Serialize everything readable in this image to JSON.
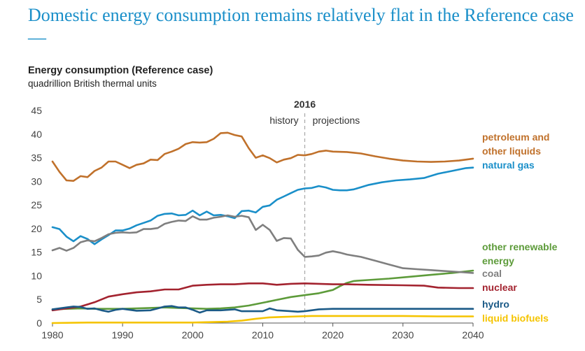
{
  "headline": "Domestic energy consumption remains relatively flat in the Reference case—",
  "chart_data": {
    "type": "line",
    "title": "Energy consumption (Reference case)",
    "subtitle": "quadrillion British thermal units",
    "xlim": [
      1980,
      2040
    ],
    "ylim": [
      0,
      45
    ],
    "x_ticks": [
      "1980",
      "1990",
      "2000",
      "2010",
      "2020",
      "2030",
      "2040"
    ],
    "y_ticks": [
      "0",
      "5",
      "10",
      "15",
      "20",
      "25",
      "30",
      "35",
      "40",
      "45"
    ],
    "grid": false,
    "divider": {
      "x": 2016,
      "label": "2016",
      "left_label": "history",
      "right_label": "projections"
    },
    "series": [
      {
        "name": "petroleum and other liquids",
        "label_lines": [
          "petroleum and",
          "other liquids"
        ],
        "color": "#c0712b",
        "points": [
          [
            1980,
            34.2
          ],
          [
            1981,
            32.0
          ],
          [
            1982,
            30.2
          ],
          [
            1983,
            30.1
          ],
          [
            1984,
            31.1
          ],
          [
            1985,
            30.9
          ],
          [
            1986,
            32.2
          ],
          [
            1987,
            32.9
          ],
          [
            1988,
            34.2
          ],
          [
            1989,
            34.2
          ],
          [
            1990,
            33.5
          ],
          [
            1991,
            32.8
          ],
          [
            1992,
            33.5
          ],
          [
            1993,
            33.8
          ],
          [
            1994,
            34.6
          ],
          [
            1995,
            34.5
          ],
          [
            1996,
            35.8
          ],
          [
            1997,
            36.3
          ],
          [
            1998,
            36.9
          ],
          [
            1999,
            37.9
          ],
          [
            2000,
            38.3
          ],
          [
            2001,
            38.2
          ],
          [
            2002,
            38.3
          ],
          [
            2003,
            39.0
          ],
          [
            2004,
            40.2
          ],
          [
            2005,
            40.3
          ],
          [
            2006,
            39.8
          ],
          [
            2007,
            39.5
          ],
          [
            2008,
            37.0
          ],
          [
            2009,
            35.0
          ],
          [
            2010,
            35.5
          ],
          [
            2011,
            34.9
          ],
          [
            2012,
            34.0
          ],
          [
            2013,
            34.6
          ],
          [
            2014,
            34.9
          ],
          [
            2015,
            35.6
          ],
          [
            2016,
            35.5
          ],
          [
            2017,
            35.8
          ],
          [
            2018,
            36.3
          ],
          [
            2019,
            36.5
          ],
          [
            2020,
            36.3
          ],
          [
            2022,
            36.2
          ],
          [
            2024,
            35.9
          ],
          [
            2026,
            35.3
          ],
          [
            2028,
            34.8
          ],
          [
            2030,
            34.4
          ],
          [
            2032,
            34.2
          ],
          [
            2034,
            34.1
          ],
          [
            2036,
            34.2
          ],
          [
            2038,
            34.4
          ],
          [
            2040,
            34.8
          ]
        ]
      },
      {
        "name": "natural gas",
        "label_lines": [
          "natural gas"
        ],
        "color": "#1a8fc9",
        "points": [
          [
            1980,
            20.3
          ],
          [
            1981,
            19.9
          ],
          [
            1982,
            18.3
          ],
          [
            1983,
            17.3
          ],
          [
            1984,
            18.4
          ],
          [
            1985,
            17.8
          ],
          [
            1986,
            16.7
          ],
          [
            1987,
            17.7
          ],
          [
            1988,
            18.6
          ],
          [
            1989,
            19.6
          ],
          [
            1990,
            19.6
          ],
          [
            1991,
            20.0
          ],
          [
            1992,
            20.7
          ],
          [
            1993,
            21.2
          ],
          [
            1994,
            21.7
          ],
          [
            1995,
            22.7
          ],
          [
            1996,
            23.1
          ],
          [
            1997,
            23.2
          ],
          [
            1998,
            22.8
          ],
          [
            1999,
            22.9
          ],
          [
            2000,
            23.8
          ],
          [
            2001,
            22.8
          ],
          [
            2002,
            23.6
          ],
          [
            2003,
            22.8
          ],
          [
            2004,
            22.9
          ],
          [
            2005,
            22.6
          ],
          [
            2006,
            22.2
          ],
          [
            2007,
            23.7
          ],
          [
            2008,
            23.8
          ],
          [
            2009,
            23.4
          ],
          [
            2010,
            24.6
          ],
          [
            2011,
            24.9
          ],
          [
            2012,
            26.1
          ],
          [
            2013,
            26.8
          ],
          [
            2014,
            27.5
          ],
          [
            2015,
            28.2
          ],
          [
            2016,
            28.5
          ],
          [
            2017,
            28.6
          ],
          [
            2018,
            29.0
          ],
          [
            2019,
            28.7
          ],
          [
            2020,
            28.2
          ],
          [
            2021,
            28.1
          ],
          [
            2022,
            28.1
          ],
          [
            2023,
            28.3
          ],
          [
            2025,
            29.2
          ],
          [
            2027,
            29.8
          ],
          [
            2029,
            30.2
          ],
          [
            2031,
            30.4
          ],
          [
            2033,
            30.7
          ],
          [
            2035,
            31.6
          ],
          [
            2037,
            32.2
          ],
          [
            2039,
            32.8
          ],
          [
            2040,
            32.9
          ]
        ]
      },
      {
        "name": "other renewable energy",
        "label_lines": [
          "other renewable",
          "energy"
        ],
        "color": "#5d9b3a",
        "points": [
          [
            1980,
            2.9
          ],
          [
            1982,
            3.0
          ],
          [
            1984,
            3.1
          ],
          [
            1986,
            3.0
          ],
          [
            1988,
            3.0
          ],
          [
            1990,
            3.0
          ],
          [
            1992,
            3.1
          ],
          [
            1994,
            3.2
          ],
          [
            1996,
            3.3
          ],
          [
            1998,
            3.2
          ],
          [
            2000,
            3.1
          ],
          [
            2002,
            3.0
          ],
          [
            2004,
            3.1
          ],
          [
            2006,
            3.3
          ],
          [
            2008,
            3.7
          ],
          [
            2010,
            4.3
          ],
          [
            2012,
            4.9
          ],
          [
            2014,
            5.5
          ],
          [
            2016,
            5.9
          ],
          [
            2018,
            6.3
          ],
          [
            2020,
            7.0
          ],
          [
            2021,
            7.8
          ],
          [
            2022,
            8.5
          ],
          [
            2023,
            8.9
          ],
          [
            2025,
            9.1
          ],
          [
            2028,
            9.4
          ],
          [
            2031,
            9.8
          ],
          [
            2034,
            10.2
          ],
          [
            2037,
            10.6
          ],
          [
            2040,
            11.1
          ]
        ]
      },
      {
        "name": "coal",
        "label_lines": [
          "coal"
        ],
        "color": "#7f7f7f",
        "points": [
          [
            1980,
            15.4
          ],
          [
            1981,
            15.9
          ],
          [
            1982,
            15.3
          ],
          [
            1983,
            15.9
          ],
          [
            1984,
            17.1
          ],
          [
            1985,
            17.5
          ],
          [
            1986,
            17.3
          ],
          [
            1987,
            18.0
          ],
          [
            1988,
            18.8
          ],
          [
            1989,
            19.1
          ],
          [
            1990,
            19.2
          ],
          [
            1991,
            19.1
          ],
          [
            1992,
            19.2
          ],
          [
            1993,
            19.9
          ],
          [
            1994,
            19.9
          ],
          [
            1995,
            20.1
          ],
          [
            1996,
            21.0
          ],
          [
            1997,
            21.4
          ],
          [
            1998,
            21.7
          ],
          [
            1999,
            21.6
          ],
          [
            2000,
            22.6
          ],
          [
            2001,
            21.9
          ],
          [
            2002,
            21.9
          ],
          [
            2003,
            22.3
          ],
          [
            2004,
            22.5
          ],
          [
            2005,
            22.8
          ],
          [
            2006,
            22.5
          ],
          [
            2007,
            22.7
          ],
          [
            2008,
            22.4
          ],
          [
            2009,
            19.7
          ],
          [
            2010,
            20.8
          ],
          [
            2011,
            19.7
          ],
          [
            2012,
            17.4
          ],
          [
            2013,
            18.0
          ],
          [
            2014,
            17.9
          ],
          [
            2015,
            15.5
          ],
          [
            2016,
            14.0
          ],
          [
            2017,
            14.1
          ],
          [
            2018,
            14.3
          ],
          [
            2019,
            14.9
          ],
          [
            2020,
            15.2
          ],
          [
            2021,
            14.9
          ],
          [
            2022,
            14.5
          ],
          [
            2024,
            14.0
          ],
          [
            2026,
            13.2
          ],
          [
            2028,
            12.4
          ],
          [
            2030,
            11.6
          ],
          [
            2032,
            11.4
          ],
          [
            2034,
            11.2
          ],
          [
            2036,
            11.0
          ],
          [
            2038,
            10.8
          ],
          [
            2040,
            10.6
          ]
        ]
      },
      {
        "name": "nuclear",
        "label_lines": [
          "nuclear"
        ],
        "color": "#a3232f",
        "points": [
          [
            1980,
            2.7
          ],
          [
            1982,
            3.1
          ],
          [
            1984,
            3.5
          ],
          [
            1986,
            4.4
          ],
          [
            1988,
            5.6
          ],
          [
            1990,
            6.1
          ],
          [
            1992,
            6.5
          ],
          [
            1994,
            6.7
          ],
          [
            1996,
            7.1
          ],
          [
            1998,
            7.1
          ],
          [
            2000,
            7.9
          ],
          [
            2002,
            8.1
          ],
          [
            2004,
            8.2
          ],
          [
            2006,
            8.2
          ],
          [
            2008,
            8.4
          ],
          [
            2010,
            8.4
          ],
          [
            2012,
            8.1
          ],
          [
            2014,
            8.3
          ],
          [
            2016,
            8.4
          ],
          [
            2018,
            8.3
          ],
          [
            2020,
            8.2
          ],
          [
            2022,
            8.2
          ],
          [
            2025,
            8.1
          ],
          [
            2030,
            8.0
          ],
          [
            2033,
            7.9
          ],
          [
            2035,
            7.5
          ],
          [
            2038,
            7.4
          ],
          [
            2040,
            7.4
          ]
        ]
      },
      {
        "name": "hydro",
        "label_lines": [
          "hydro"
        ],
        "color": "#1b5a87",
        "points": [
          [
            1980,
            2.9
          ],
          [
            1982,
            3.3
          ],
          [
            1983,
            3.5
          ],
          [
            1984,
            3.4
          ],
          [
            1985,
            3.0
          ],
          [
            1986,
            3.1
          ],
          [
            1987,
            2.7
          ],
          [
            1988,
            2.4
          ],
          [
            1989,
            2.8
          ],
          [
            1990,
            3.0
          ],
          [
            1992,
            2.6
          ],
          [
            1994,
            2.7
          ],
          [
            1995,
            3.1
          ],
          [
            1996,
            3.5
          ],
          [
            1997,
            3.6
          ],
          [
            1998,
            3.3
          ],
          [
            1999,
            3.3
          ],
          [
            2000,
            2.8
          ],
          [
            2001,
            2.2
          ],
          [
            2002,
            2.7
          ],
          [
            2004,
            2.7
          ],
          [
            2006,
            2.9
          ],
          [
            2007,
            2.5
          ],
          [
            2008,
            2.5
          ],
          [
            2010,
            2.5
          ],
          [
            2011,
            3.1
          ],
          [
            2012,
            2.7
          ],
          [
            2014,
            2.5
          ],
          [
            2015,
            2.4
          ],
          [
            2016,
            2.5
          ],
          [
            2018,
            2.9
          ],
          [
            2020,
            3.0
          ],
          [
            2025,
            3.0
          ],
          [
            2030,
            3.0
          ],
          [
            2035,
            3.0
          ],
          [
            2040,
            3.0
          ]
        ]
      },
      {
        "name": "liquid biofuels",
        "label_lines": [
          "liquid biofuels"
        ],
        "color": "#f5c400",
        "points": [
          [
            1980,
            0.0
          ],
          [
            1985,
            0.1
          ],
          [
            1990,
            0.1
          ],
          [
            1995,
            0.1
          ],
          [
            2000,
            0.1
          ],
          [
            2003,
            0.2
          ],
          [
            2005,
            0.3
          ],
          [
            2007,
            0.5
          ],
          [
            2009,
            0.9
          ],
          [
            2011,
            1.2
          ],
          [
            2013,
            1.3
          ],
          [
            2015,
            1.4
          ],
          [
            2017,
            1.5
          ],
          [
            2020,
            1.5
          ],
          [
            2025,
            1.5
          ],
          [
            2030,
            1.5
          ],
          [
            2035,
            1.4
          ],
          [
            2040,
            1.4
          ]
        ]
      }
    ]
  }
}
